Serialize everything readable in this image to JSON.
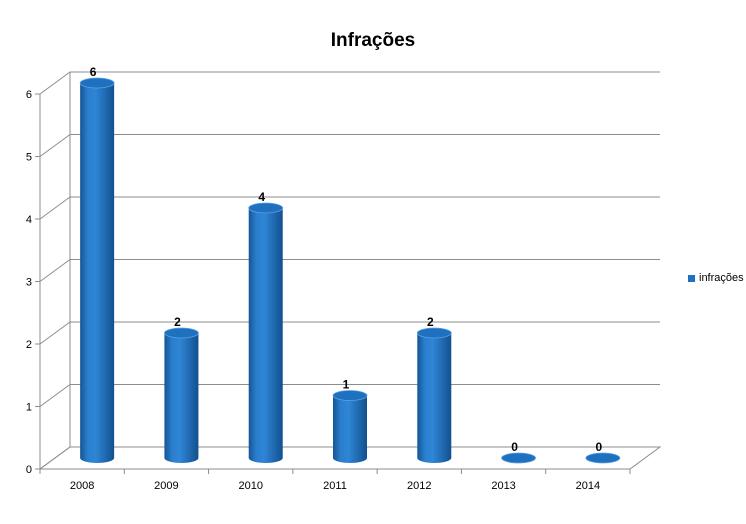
{
  "chart_data": {
    "type": "bar",
    "title": "Infrações",
    "categories": [
      "2008",
      "2009",
      "2010",
      "2011",
      "2012",
      "2013",
      "2014"
    ],
    "series": [
      {
        "name": "infrações",
        "values": [
          6,
          2,
          4,
          1,
          2,
          0,
          0
        ],
        "color": "#1F70BF"
      }
    ],
    "ylim": [
      0,
      6
    ],
    "yticks": [
      "0",
      "1",
      "2",
      "3",
      "4",
      "5",
      "6"
    ],
    "data_labels": [
      "6",
      "2",
      "4",
      "1",
      "2",
      "0",
      "0"
    ],
    "xlabel": "",
    "ylabel": "",
    "grid": true,
    "legend": "right",
    "style": "3d-cylinder"
  }
}
